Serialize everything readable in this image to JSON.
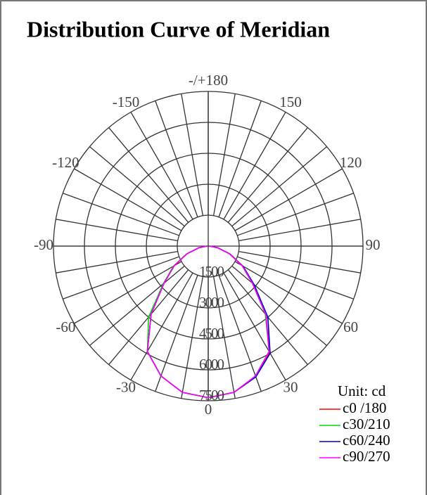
{
  "chart_data": {
    "type": "polar",
    "title": "Distribution Curve of Meridian",
    "unit_label": "Unit: cd",
    "x": [
      -90,
      -80,
      -70,
      -60,
      -50,
      -40,
      -30,
      -20,
      -10,
      0,
      10,
      20,
      30,
      40,
      50,
      60,
      70,
      80,
      90
    ],
    "series": [
      {
        "name": "c0 /180",
        "color": "#ff0000",
        "values": [
          50,
          450,
          1100,
          1900,
          2800,
          4300,
          5900,
          6700,
          7200,
          7350,
          7200,
          6700,
          5950,
          4350,
          2800,
          1900,
          1100,
          450,
          50
        ]
      },
      {
        "name": "c30/210",
        "color": "#00dd00",
        "values": [
          50,
          460,
          1120,
          1950,
          2850,
          4500,
          5900,
          6700,
          7200,
          7350,
          7200,
          6700,
          5900,
          4300,
          2800,
          1900,
          1100,
          450,
          50
        ]
      },
      {
        "name": "c60/240",
        "color": "#0000cc",
        "values": [
          50,
          450,
          1100,
          1900,
          2800,
          4300,
          5900,
          6700,
          7200,
          7350,
          7200,
          6750,
          6000,
          4500,
          2900,
          1950,
          1120,
          460,
          50
        ]
      },
      {
        "name": "c90/270",
        "color": "#ff00ff",
        "values": [
          50,
          450,
          1100,
          1900,
          2800,
          4300,
          5900,
          6700,
          7200,
          7350,
          7200,
          6700,
          5900,
          4350,
          2800,
          1900,
          1100,
          450,
          50
        ]
      }
    ],
    "rlim": [
      0,
      7500
    ],
    "rticks": [
      1500,
      3000,
      4500,
      6000,
      7500
    ],
    "angle_ticks": [
      0,
      30,
      60,
      90,
      120,
      150,
      {
        "value": 180,
        "label": "-/+180"
      },
      -150,
      -120,
      -90,
      -60,
      -30
    ],
    "legend": "bottom-right"
  }
}
